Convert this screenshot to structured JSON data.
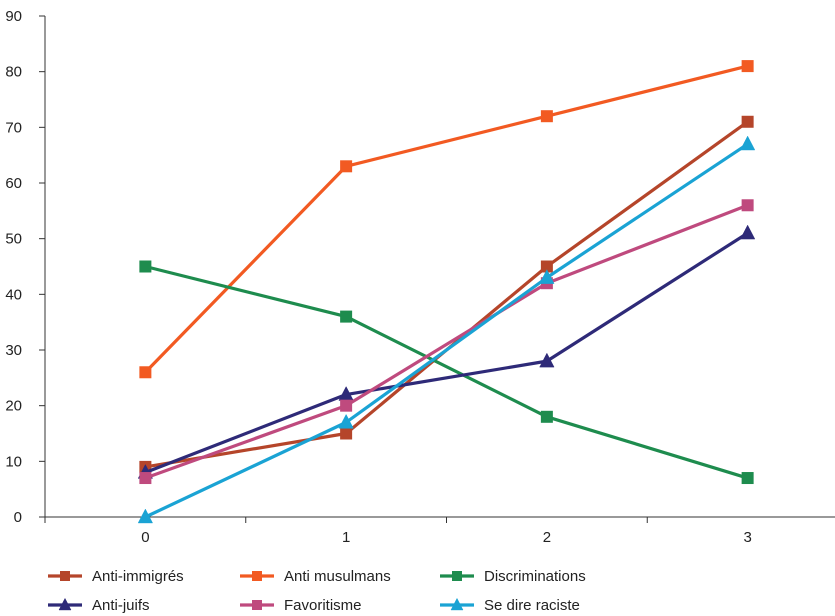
{
  "chart_data": {
    "type": "line",
    "title": "",
    "xlabel": "",
    "ylabel": "",
    "categories": [
      "0",
      "1",
      "2",
      "3"
    ],
    "ylim": [
      0,
      90
    ],
    "yticks": [
      "0",
      "10",
      "20",
      "30",
      "40",
      "50",
      "60",
      "70",
      "80",
      "90"
    ],
    "grid": false,
    "legend_position": "bottom",
    "series": [
      {
        "name": "Anti-immigrés",
        "values": [
          9,
          15,
          45,
          71
        ],
        "color": "#b5452a",
        "marker": "square"
      },
      {
        "name": "Anti musulmans",
        "values": [
          26,
          63,
          72,
          81
        ],
        "color": "#f25a22",
        "marker": "square"
      },
      {
        "name": "Discriminations",
        "values": [
          45,
          36,
          18,
          7
        ],
        "color": "#1e8c4e",
        "marker": "square"
      },
      {
        "name": "Anti-juifs",
        "values": [
          8,
          22,
          28,
          51
        ],
        "color": "#2e2a78",
        "marker": "triangle"
      },
      {
        "name": "Favoritisme",
        "values": [
          7,
          20,
          42,
          56
        ],
        "color": "#bf4a7e",
        "marker": "square"
      },
      {
        "name": "Se dire raciste",
        "values": [
          0,
          17,
          43,
          67
        ],
        "color": "#1aa3d4",
        "marker": "triangle"
      }
    ]
  }
}
